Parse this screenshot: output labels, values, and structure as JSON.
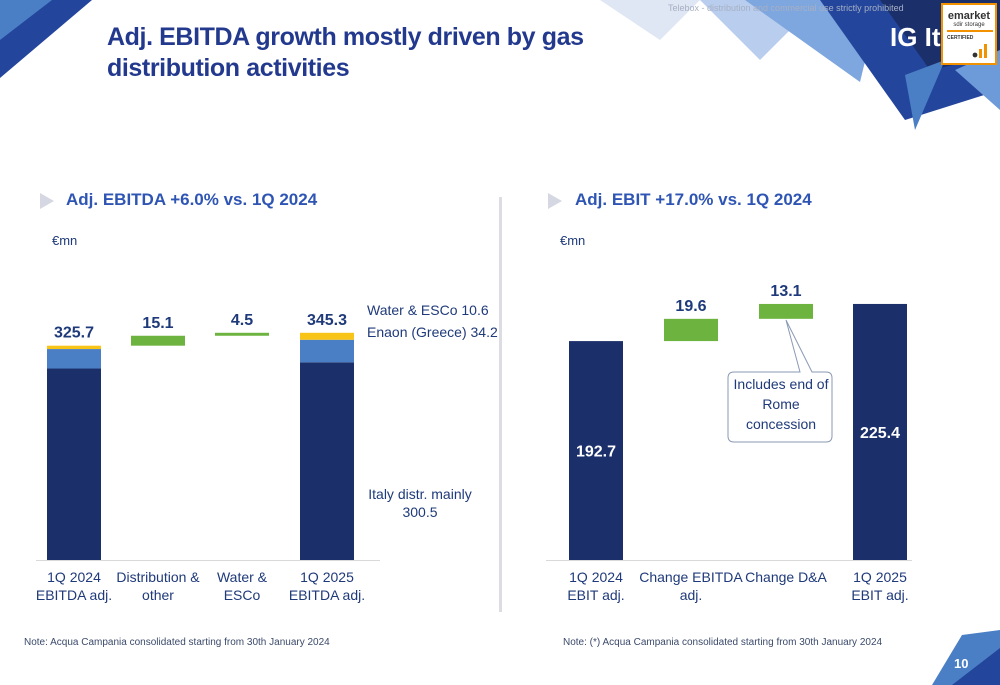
{
  "page": {
    "title": "Adj. EBITDA growth mostly driven by gas distribution activities",
    "confidentiality": "Telebox - distribution and commercial use strictly prohibited",
    "logo_text": "IG Ita",
    "badge": {
      "line1": "emarket",
      "line2": "sdir storage",
      "line3": "CERTIFIED"
    },
    "page_number": "10"
  },
  "colors": {
    "navy": "#1b2f6b",
    "mid_blue": "#4a7fc6",
    "yellow": "#f9c418",
    "green": "#6db33f"
  },
  "chart_data": [
    {
      "type": "bar",
      "subtype": "waterfall",
      "title": "Adj. EBITDA +6.0% vs. 1Q 2024",
      "unit": "€mn",
      "ylim": [
        0,
        370
      ],
      "categories": [
        "1Q 2024\nEBITDA adj.",
        "Distribution &\nother",
        "Water &\nESCo",
        "1Q 2025\nEBITDA adj."
      ],
      "totals": [
        "325.7",
        "15.1",
        "4.5",
        "345.3"
      ],
      "bars": [
        {
          "category": 0,
          "kind": "stacked",
          "segments": [
            {
              "name": "Italy distr.",
              "value": 291.0,
              "color": "navy"
            },
            {
              "name": "Enaon (Greece)",
              "value": 29.6,
              "color": "mid_blue"
            },
            {
              "name": "Water & ESCo",
              "value": 5.1,
              "color": "yellow"
            }
          ]
        },
        {
          "category": 1,
          "kind": "delta",
          "base": 325.7,
          "value": 15.1,
          "color": "green"
        },
        {
          "category": 2,
          "kind": "delta",
          "base": 340.8,
          "value": 4.5,
          "color": "green"
        },
        {
          "category": 3,
          "kind": "stacked",
          "segments": [
            {
              "name": "Italy distr.",
              "value": 300.5,
              "color": "navy"
            },
            {
              "name": "Enaon (Greece)",
              "value": 34.2,
              "color": "mid_blue"
            },
            {
              "name": "Water & ESCo",
              "value": 10.6,
              "color": "yellow"
            }
          ]
        }
      ],
      "segment_labels": {
        "water": "Water & ESCo 10.6",
        "enaon": "Enaon (Greece) 34.2",
        "italy": "Italy distr. mainly\n300.5"
      },
      "note": "Note: Acqua Campania consolidated starting from 30th January 2024"
    },
    {
      "type": "bar",
      "subtype": "waterfall",
      "title": "Adj. EBIT +17.0% vs. 1Q 2024",
      "unit": "€mn",
      "ylim": [
        0,
        250
      ],
      "categories": [
        "1Q 2024\nEBIT adj.",
        "Change EBITDA\nadj.",
        "Change D&A",
        "1Q 2025\nEBIT adj."
      ],
      "totals": [
        "192.7",
        "19.6",
        "13.1",
        "225.4"
      ],
      "bars": [
        {
          "category": 0,
          "kind": "total",
          "value": 192.7,
          "color": "navy",
          "label_inside": true
        },
        {
          "category": 1,
          "kind": "delta",
          "base": 192.7,
          "value": 19.6,
          "color": "green"
        },
        {
          "category": 2,
          "kind": "delta",
          "base": 212.3,
          "value": 13.1,
          "color": "green"
        },
        {
          "category": 3,
          "kind": "total",
          "value": 225.4,
          "color": "navy",
          "label_inside": true
        }
      ],
      "callout": "Includes end of Rome concession",
      "note": "Note: (*) Acqua Campania consolidated starting from 30th January 2024"
    }
  ]
}
